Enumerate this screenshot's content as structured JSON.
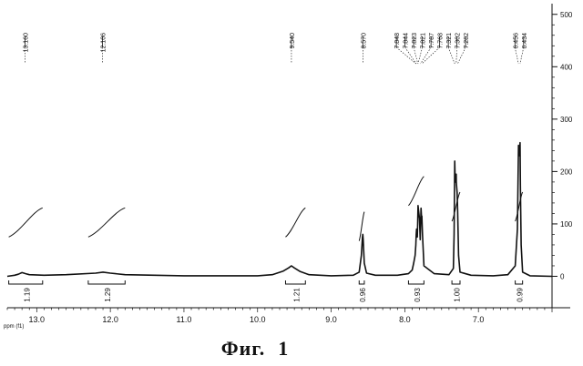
{
  "chart_data": {
    "type": "line",
    "title": "",
    "xlabel": "ppm (f1)",
    "ylabel": "",
    "x_reversed": true,
    "xlim": [
      13.4,
      6.0
    ],
    "ylim": [
      -60,
      510
    ],
    "x_ticks": [
      {
        "value": 13.0,
        "label": "13.0"
      },
      {
        "value": 12.0,
        "label": "12.0"
      },
      {
        "value": 11.0,
        "label": "11.0"
      },
      {
        "value": 10.0,
        "label": "10.0"
      },
      {
        "value": 9.0,
        "label": "9.0"
      },
      {
        "value": 8.0,
        "label": "8.0"
      },
      {
        "value": 7.0,
        "label": "7.0"
      }
    ],
    "y_ticks": [
      {
        "value": 500,
        "label": "500"
      },
      {
        "value": 400,
        "label": "400"
      },
      {
        "value": 300,
        "label": "300"
      },
      {
        "value": 200,
        "label": "200"
      },
      {
        "value": 100,
        "label": "100"
      },
      {
        "value": 0,
        "label": "0"
      }
    ],
    "series": [
      {
        "x": [
          13.4,
          13.3,
          13.25,
          13.2,
          13.15,
          13.1,
          12.9,
          12.6,
          12.2,
          12.1,
          12.0,
          11.8,
          11.0,
          10.0,
          9.8,
          9.65,
          9.58,
          9.54,
          9.5,
          9.42,
          9.3,
          9.0,
          8.7,
          8.62,
          8.59,
          8.575,
          8.57,
          8.565,
          8.55,
          8.52,
          8.4,
          8.1,
          7.95,
          7.9,
          7.88,
          7.86,
          7.85,
          7.845,
          7.84,
          7.83,
          7.825,
          7.82,
          7.8,
          7.79,
          7.787,
          7.78,
          7.77,
          7.768,
          7.76,
          7.74,
          7.6,
          7.4,
          7.34,
          7.33,
          7.321,
          7.315,
          7.302,
          7.3,
          7.29,
          7.282,
          7.27,
          7.25,
          7.1,
          6.8,
          6.6,
          6.5,
          6.47,
          6.46,
          6.456,
          6.45,
          6.44,
          6.434,
          6.43,
          6.42,
          6.4,
          6.3,
          6.0
        ],
        "y": [
          0,
          2,
          4,
          7,
          5,
          3,
          2,
          3,
          6,
          8,
          6,
          3,
          1,
          1,
          3,
          10,
          16,
          20,
          16,
          9,
          3,
          1,
          2,
          8,
          40,
          75,
          80,
          70,
          25,
          6,
          2,
          2,
          5,
          12,
          25,
          40,
          60,
          80,
          90,
          75,
          100,
          135,
          110,
          70,
          90,
          130,
          105,
          115,
          80,
          20,
          5,
          3,
          15,
          80,
          220,
          180,
          195,
          180,
          160,
          125,
          40,
          8,
          2,
          1,
          3,
          20,
          90,
          200,
          250,
          240,
          230,
          255,
          170,
          60,
          8,
          1,
          0
        ]
      }
    ],
    "peak_labels": [
      {
        "value": 13.16,
        "label": "13.160"
      },
      {
        "value": 12.106,
        "label": "12.106"
      },
      {
        "value": 9.54,
        "label": "9.540"
      },
      {
        "value": 8.57,
        "label": "8.570"
      },
      {
        "value": 7.848,
        "label": "7.848"
      },
      {
        "value": 7.844,
        "label": "7.844"
      },
      {
        "value": 7.823,
        "label": "7.823"
      },
      {
        "value": 7.821,
        "label": "7.821"
      },
      {
        "value": 7.787,
        "label": "7.787"
      },
      {
        "value": 7.768,
        "label": "7.768"
      },
      {
        "value": 7.321,
        "label": "7.321"
      },
      {
        "value": 7.302,
        "label": "7.302"
      },
      {
        "value": 7.282,
        "label": "7.282"
      },
      {
        "value": 6.456,
        "label": "6.456"
      },
      {
        "value": 6.434,
        "label": "6.434"
      }
    ],
    "integrations": [
      {
        "from": 13.38,
        "to": 12.92,
        "value": 0.2,
        "label": "1.19"
      },
      {
        "from": 12.3,
        "to": 11.8,
        "value": 0.2,
        "label": "1.29"
      },
      {
        "from": 9.62,
        "to": 9.35,
        "value": 0.2,
        "label": "1.21"
      },
      {
        "from": 8.62,
        "to": 8.55,
        "value": 0.15,
        "label": "0.96"
      },
      {
        "from": 7.95,
        "to": 7.74,
        "value": 0.6,
        "label": "0.93"
      },
      {
        "from": 7.36,
        "to": 7.25,
        "value": 0.4,
        "label": "1.00"
      },
      {
        "from": 6.5,
        "to": 6.4,
        "value": 0.4,
        "label": "0.99"
      }
    ]
  },
  "caption": {
    "label": "Фиг.",
    "number": "1"
  }
}
